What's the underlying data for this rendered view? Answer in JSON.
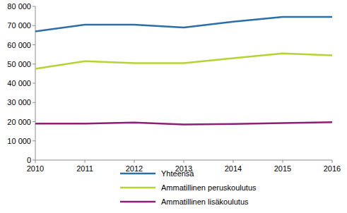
{
  "chart_data": {
    "type": "line",
    "x": [
      2010,
      2011,
      2012,
      2013,
      2014,
      2015,
      2016
    ],
    "series": [
      {
        "name": "Yhteensä",
        "color": "#2a6fa8",
        "values": [
          67000,
          70500,
          70500,
          69000,
          72000,
          74500,
          74500
        ]
      },
      {
        "name": "Ammatillinen peruskoulutus",
        "color": "#b5d334",
        "values": [
          47500,
          51500,
          50500,
          50500,
          53000,
          55500,
          54500
        ]
      },
      {
        "name": "Ammatillinen lisäkoulutus",
        "color": "#8c1f78",
        "values": [
          19000,
          19000,
          19500,
          18500,
          18800,
          19300,
          19700
        ]
      }
    ],
    "xlim": [
      2010,
      2016
    ],
    "xticks": [
      2010,
      2011,
      2012,
      2013,
      2014,
      2015,
      2016
    ],
    "ylim": [
      0,
      80000
    ],
    "yticks": [
      0,
      {
        "value": 10000,
        "label": "10 000"
      },
      {
        "value": 20000,
        "label": "20 000"
      },
      {
        "value": 30000,
        "label": "30 000"
      },
      {
        "value": 40000,
        "label": "40 000"
      },
      {
        "value": 50000,
        "label": "50 000"
      },
      {
        "value": 60000,
        "label": "60 000"
      },
      {
        "value": 70000,
        "label": "70 000"
      },
      {
        "value": 80000,
        "label": "80 000"
      }
    ],
    "grid": false,
    "legend": "bottom"
  }
}
